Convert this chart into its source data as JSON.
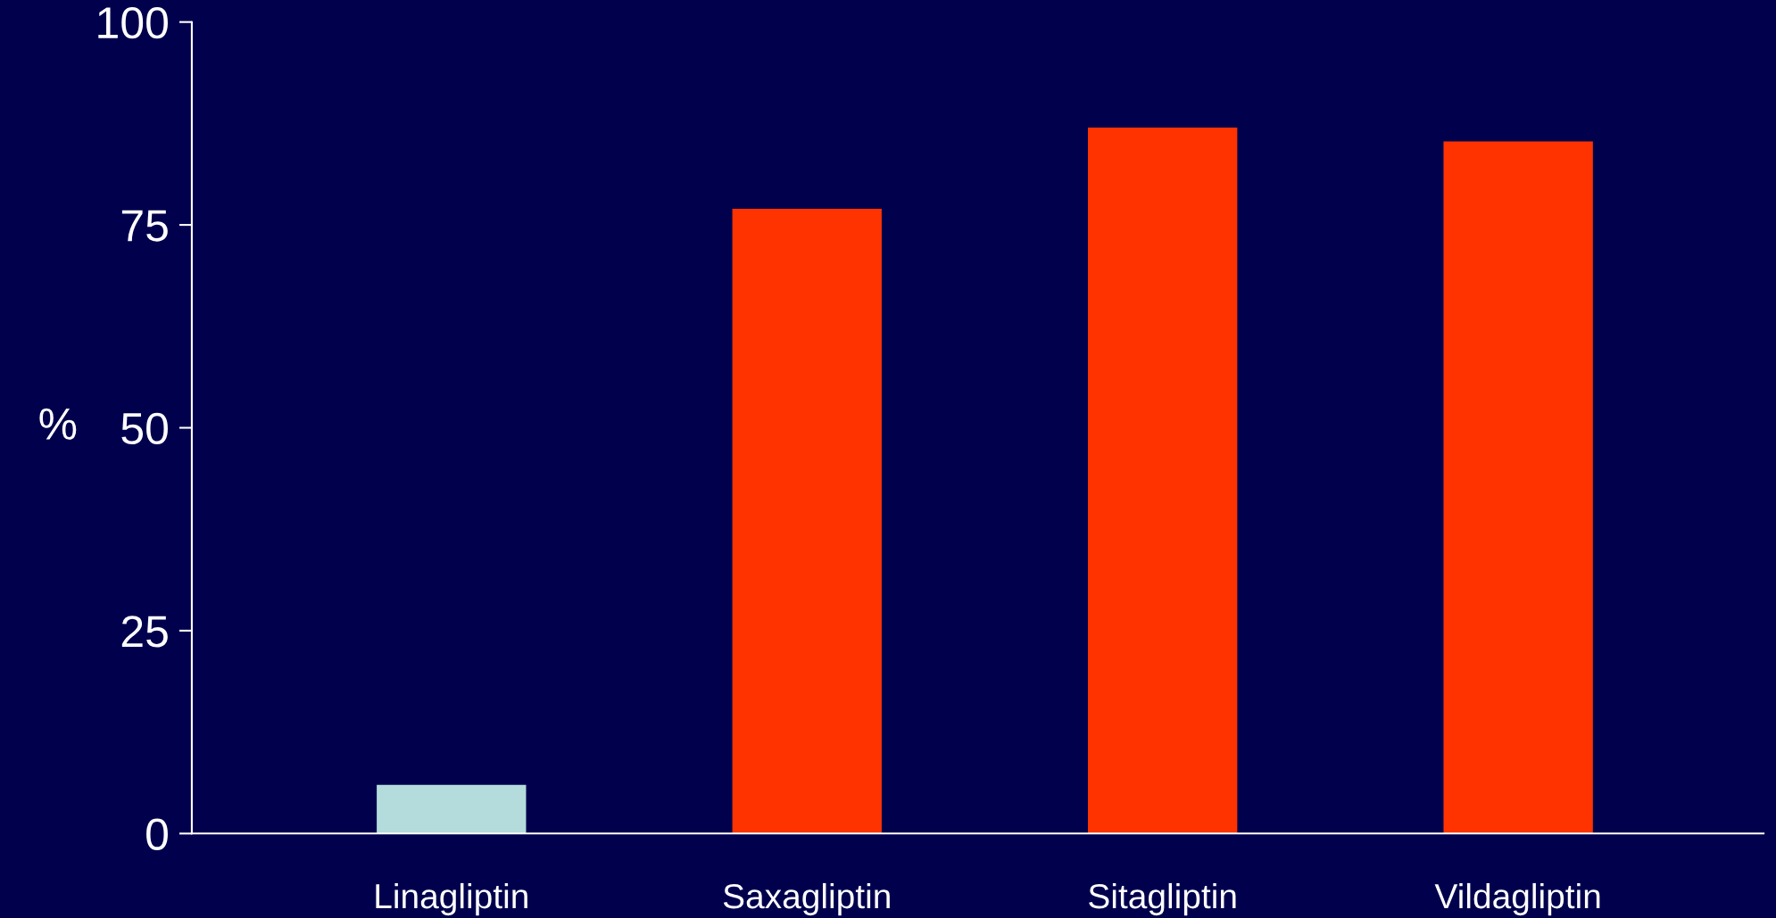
{
  "chart_data": {
    "type": "bar",
    "categories": [
      "Linagliptin",
      "Saxagliptin",
      "Sitagliptin",
      "Vildagliptin"
    ],
    "values": [
      6,
      77,
      87,
      85.3
    ],
    "colors": [
      "#b4dcdc",
      "#ff3300",
      "#ff3300",
      "#ff3300"
    ],
    "ylabel": "%",
    "ylim": [
      0,
      100
    ],
    "yticks": [
      0,
      25,
      50,
      75,
      100
    ],
    "grid": false,
    "legend": false
  }
}
